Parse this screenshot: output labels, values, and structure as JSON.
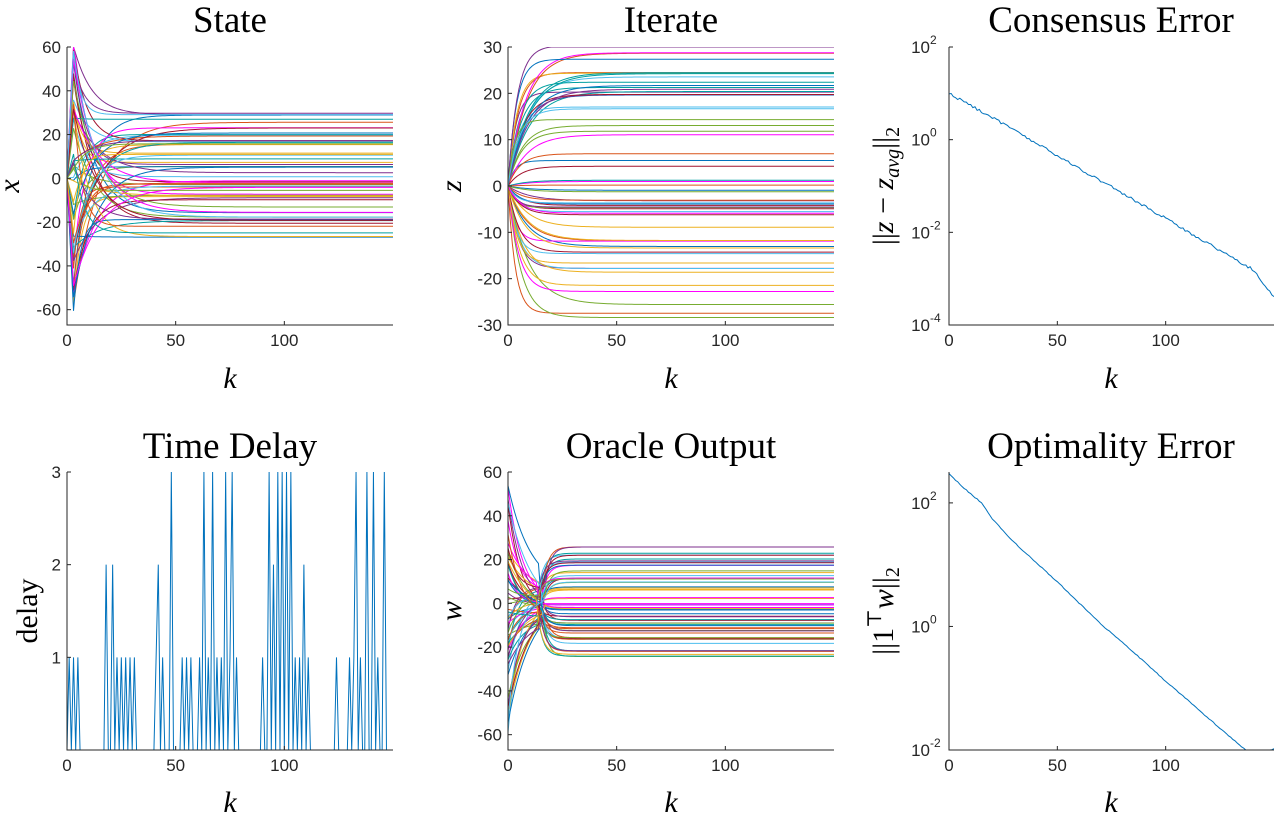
{
  "chart_data": [
    {
      "id": "state",
      "type": "line",
      "title": "State",
      "xlabel": "k",
      "ylabel": "x",
      "xlim": [
        0,
        150
      ],
      "ylim": [
        -67,
        60
      ],
      "xticks": [
        0,
        50,
        100
      ],
      "yticks": [
        -60,
        -40,
        -20,
        0,
        20,
        40,
        60
      ],
      "ytick_labels": [
        "-60",
        "-40",
        "-20",
        "0",
        "20",
        "40",
        "60"
      ],
      "series_count": 60,
      "final_values_range": [
        -30,
        30
      ],
      "initial_values_range": [
        -67,
        60
      ],
      "description_kind": "state"
    },
    {
      "id": "iterate",
      "type": "line",
      "title": "Iterate",
      "xlabel": "k",
      "ylabel": "z",
      "xlim": [
        0,
        150
      ],
      "ylim": [
        -30,
        30
      ],
      "xticks": [
        0,
        50,
        100
      ],
      "yticks": [
        -30,
        -20,
        -10,
        0,
        10,
        20,
        30
      ],
      "ytick_labels": [
        "-30",
        "-20",
        "-10",
        "0",
        "10",
        "20",
        "30"
      ],
      "series_count": 60,
      "final_values_range": [
        -30,
        30
      ],
      "initial_value": 0,
      "description_kind": "iterate"
    },
    {
      "id": "consensus",
      "type": "line",
      "title": "Consensus Error",
      "xlabel": "k",
      "ylabel": "||z − z_avg||_2",
      "ylabel_parts": {
        "open": "||",
        "var": "z",
        "minus": " − ",
        "sub_var": "z",
        "sub": "avg",
        "close": "||",
        "norm_sub": "2"
      },
      "yscale": "log",
      "xlim": [
        0,
        150
      ],
      "ylim_exp": [
        -4,
        2
      ],
      "xticks": [
        0,
        50,
        100
      ],
      "yticks_exp": [
        -4,
        -2,
        0,
        2
      ],
      "ytick_base": "10",
      "ytick_exps": [
        "-4",
        "-2",
        "0",
        "2"
      ],
      "x": [
        0,
        10,
        20,
        30,
        40,
        50,
        60,
        70,
        80,
        90,
        100,
        110,
        120,
        130,
        140,
        150
      ],
      "values": [
        10,
        5.5,
        3.0,
        1.6,
        0.85,
        0.45,
        0.24,
        0.13,
        0.07,
        0.037,
        0.02,
        0.0105,
        0.0056,
        0.003,
        0.0016,
        0.0004
      ]
    },
    {
      "id": "delay",
      "type": "line",
      "title": "Time Delay",
      "xlabel": "k",
      "ylabel": "delay",
      "xlim": [
        0,
        150
      ],
      "ylim": [
        0,
        3
      ],
      "xticks": [
        0,
        50,
        100
      ],
      "yticks": [
        1,
        2,
        3
      ],
      "ytick_labels": [
        "1",
        "2",
        "3"
      ],
      "x": [
        0,
        1,
        2,
        3,
        4,
        5,
        6,
        7,
        8,
        9,
        10,
        11,
        12,
        13,
        14,
        15,
        16,
        17,
        18,
        19,
        20,
        21,
        22,
        23,
        24,
        25,
        26,
        27,
        28,
        29,
        30,
        31,
        32,
        33,
        34,
        35,
        36,
        37,
        38,
        39,
        40,
        41,
        42,
        43,
        44,
        45,
        46,
        47,
        48,
        49,
        50,
        51,
        52,
        53,
        54,
        55,
        56,
        57,
        58,
        59,
        60,
        61,
        62,
        63,
        64,
        65,
        66,
        67,
        68,
        69,
        70,
        71,
        72,
        73,
        74,
        75,
        76,
        77,
        78,
        79,
        80,
        81,
        82,
        83,
        84,
        85,
        86,
        87,
        88,
        89,
        90,
        91,
        92,
        93,
        94,
        95,
        96,
        97,
        98,
        99,
        100,
        101,
        102,
        103,
        104,
        105,
        106,
        107,
        108,
        109,
        110,
        111,
        112,
        113,
        114,
        115,
        116,
        117,
        118,
        119,
        120,
        121,
        122,
        123,
        124,
        125,
        126,
        127,
        128,
        129,
        130,
        131,
        132,
        133,
        134,
        135,
        136,
        137,
        138,
        139,
        140,
        141,
        142,
        143,
        144,
        145,
        146,
        147,
        148,
        149
      ],
      "values": [
        0,
        1,
        0,
        1,
        0,
        1,
        0,
        0,
        0,
        0,
        0,
        0,
        0,
        0,
        0,
        0,
        0,
        0,
        2,
        0,
        0,
        2,
        0,
        1,
        0,
        1,
        0,
        1,
        0,
        1,
        0,
        1,
        0,
        0,
        0,
        0,
        0,
        0,
        0,
        0,
        0,
        1,
        2,
        0,
        1,
        0,
        0,
        0,
        3,
        0,
        0,
        0,
        0,
        1,
        0,
        1,
        0,
        1,
        0,
        0,
        0,
        1,
        0,
        3,
        0,
        1,
        0,
        3,
        0,
        1,
        0,
        1,
        0,
        3,
        0,
        1,
        3,
        0,
        1,
        0,
        0,
        0,
        0,
        0,
        0,
        0,
        0,
        0,
        0,
        0,
        1,
        0,
        0,
        3,
        0,
        2,
        0,
        3,
        0,
        3,
        0,
        3,
        0,
        3,
        0,
        1,
        0,
        1,
        0,
        2,
        0,
        1,
        0,
        0,
        0,
        0,
        0,
        0,
        0,
        0,
        0,
        0,
        0,
        0,
        1,
        0,
        0,
        0,
        0,
        0,
        1,
        0,
        1,
        3,
        0,
        1,
        0,
        0,
        3,
        0,
        0,
        3,
        0,
        1,
        0,
        0,
        3,
        0,
        0,
        0
      ]
    },
    {
      "id": "oracle",
      "type": "line",
      "title": "Oracle Output",
      "xlabel": "k",
      "ylabel": "w",
      "xlim": [
        0,
        150
      ],
      "ylim": [
        -67,
        60
      ],
      "xticks": [
        0,
        50,
        100
      ],
      "yticks": [
        -60,
        -40,
        -20,
        0,
        20,
        40,
        60
      ],
      "ytick_labels": [
        "-60",
        "-40",
        "-20",
        "0",
        "20",
        "40",
        "60"
      ],
      "series_count": 60,
      "final_values_range": [
        -26,
        26
      ],
      "description_kind": "oracle"
    },
    {
      "id": "optimality",
      "type": "line",
      "title": "Optimality Error",
      "xlabel": "k",
      "ylabel": "||1^T w||_2",
      "ylabel_parts": {
        "open": "||",
        "one": "1",
        "sup": "⊤",
        "var": "w",
        "close": "||",
        "norm_sub": "2"
      },
      "yscale": "log",
      "xlim": [
        0,
        150
      ],
      "ylim_exp": [
        -2,
        2.5
      ],
      "xticks": [
        0,
        50,
        100
      ],
      "yticks_exp": [
        -2,
        0,
        2
      ],
      "ytick_base": "10",
      "ytick_exps": [
        "-2",
        "0",
        "2"
      ],
      "x": [
        0,
        5,
        10,
        15,
        20,
        30,
        40,
        50,
        60,
        70,
        80,
        90,
        100,
        110,
        120,
        130,
        140,
        150
      ],
      "values": [
        300,
        200,
        140,
        100,
        55,
        23,
        11,
        5.3,
        2.4,
        1.1,
        0.55,
        0.27,
        0.13,
        0.065,
        0.032,
        0.016,
        0.008,
        0.0105
      ]
    }
  ],
  "colors": {
    "matlab_palette": [
      "#0072BD",
      "#D95319",
      "#EDB120",
      "#7E2F8E",
      "#77AC30",
      "#4DBEEE",
      "#A2142F",
      "#FF00FF",
      "#00A0A0"
    ],
    "single_series": "#0072BD",
    "axis": "#262626"
  }
}
